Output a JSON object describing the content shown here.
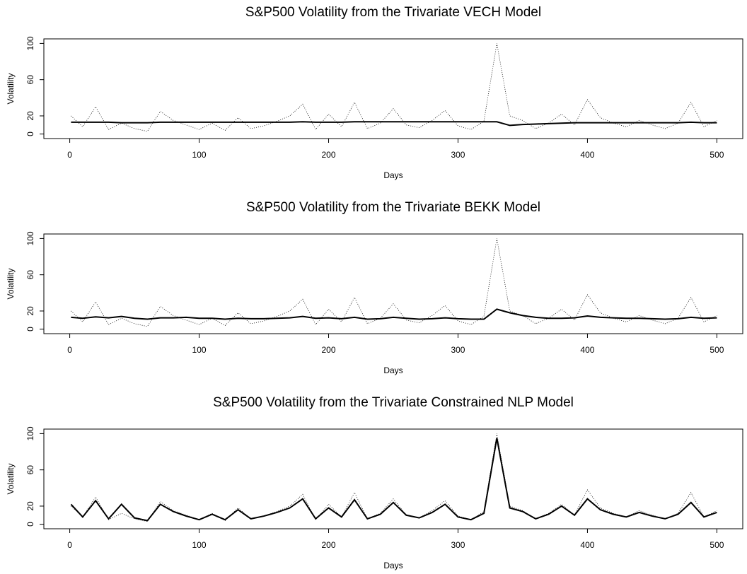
{
  "chart_data": [
    {
      "type": "line",
      "title": "S&P500 Volatility from the Trivariate VECH Model",
      "x_label": "Days",
      "y_label": "Volatility",
      "xlim": [
        -20,
        520
      ],
      "ylim": [
        -5,
        105
      ],
      "xticks": [
        0,
        100,
        200,
        300,
        400,
        500
      ],
      "yticks": [
        0,
        20,
        60,
        100
      ],
      "x": [
        1,
        10,
        20,
        30,
        40,
        50,
        60,
        70,
        80,
        90,
        100,
        110,
        120,
        130,
        140,
        150,
        160,
        170,
        180,
        190,
        200,
        210,
        220,
        230,
        240,
        250,
        260,
        270,
        280,
        290,
        300,
        310,
        320,
        330,
        340,
        350,
        360,
        370,
        380,
        390,
        400,
        410,
        420,
        430,
        440,
        450,
        460,
        470,
        480,
        490,
        500
      ],
      "series": [
        {
          "color": "#000000",
          "style": "dotted",
          "values": [
            20,
            8,
            30,
            5,
            12,
            6,
            3,
            25,
            15,
            10,
            5,
            12,
            4,
            18,
            6,
            9,
            14,
            20,
            33,
            5,
            22,
            8,
            35,
            6,
            12,
            28,
            10,
            7,
            15,
            26,
            9,
            5,
            14,
            100,
            20,
            15,
            6,
            12,
            22,
            10,
            38,
            18,
            12,
            8,
            15,
            10,
            6,
            12,
            35,
            8,
            15
          ]
        },
        {
          "color": "#000000",
          "style": "solid",
          "values": [
            13,
            13,
            13,
            13,
            12.5,
            12.5,
            12.5,
            13,
            13,
            13,
            13,
            13,
            13,
            13,
            13,
            13,
            13,
            13,
            13.5,
            13,
            13,
            13,
            13.5,
            13.5,
            13.5,
            13.5,
            13.5,
            13.5,
            13.5,
            13.5,
            13.5,
            13.5,
            13.5,
            13.5,
            9.5,
            10.5,
            11,
            11.5,
            12,
            12.5,
            12.5,
            12.5,
            12.5,
            12.5,
            12.5,
            12.5,
            12.5,
            12.5,
            13,
            12.5,
            12.5
          ]
        }
      ]
    },
    {
      "type": "line",
      "title": "S&P500 Volatility from the Trivariate BEKK Model",
      "x_label": "Days",
      "y_label": "Volatility",
      "xlim": [
        -20,
        520
      ],
      "ylim": [
        -5,
        105
      ],
      "xticks": [
        0,
        100,
        200,
        300,
        400,
        500
      ],
      "yticks": [
        0,
        20,
        60,
        100
      ],
      "x": [
        1,
        10,
        20,
        30,
        40,
        50,
        60,
        70,
        80,
        90,
        100,
        110,
        120,
        130,
        140,
        150,
        160,
        170,
        180,
        190,
        200,
        210,
        220,
        230,
        240,
        250,
        260,
        270,
        280,
        290,
        300,
        310,
        320,
        330,
        340,
        350,
        360,
        370,
        380,
        390,
        400,
        410,
        420,
        430,
        440,
        450,
        460,
        470,
        480,
        490,
        500
      ],
      "series": [
        {
          "color": "#000000",
          "style": "dotted",
          "values": [
            20,
            8,
            30,
            5,
            12,
            6,
            3,
            25,
            15,
            10,
            5,
            12,
            4,
            18,
            6,
            9,
            14,
            20,
            33,
            5,
            22,
            8,
            35,
            6,
            12,
            28,
            10,
            7,
            15,
            26,
            9,
            5,
            14,
            100,
            20,
            15,
            6,
            12,
            22,
            10,
            38,
            18,
            12,
            8,
            15,
            10,
            6,
            12,
            35,
            8,
            15
          ]
        },
        {
          "color": "#000000",
          "style": "solid",
          "values": [
            13,
            12,
            13.5,
            12.5,
            14,
            12,
            11,
            12.5,
            12.5,
            13,
            12,
            12,
            11,
            12,
            11.5,
            11.5,
            12,
            12.5,
            14,
            12,
            12.5,
            11.5,
            13,
            11,
            11.5,
            13,
            12,
            11,
            11.5,
            12.5,
            11.5,
            11,
            11,
            22,
            18,
            15,
            13,
            12,
            12,
            12.5,
            14.5,
            13,
            12.5,
            12,
            12,
            11.5,
            11,
            11.5,
            13,
            12,
            12.5
          ]
        }
      ]
    },
    {
      "type": "line",
      "title": "S&P500 Volatility from the Trivariate Constrained NLP Model",
      "x_label": "Days",
      "y_label": "Volatility",
      "xlim": [
        -20,
        520
      ],
      "ylim": [
        -5,
        105
      ],
      "xticks": [
        0,
        100,
        200,
        300,
        400,
        500
      ],
      "yticks": [
        0,
        20,
        60,
        100
      ],
      "x": [
        1,
        10,
        20,
        30,
        40,
        50,
        60,
        70,
        80,
        90,
        100,
        110,
        120,
        130,
        140,
        150,
        160,
        170,
        180,
        190,
        200,
        210,
        220,
        230,
        240,
        250,
        260,
        270,
        280,
        290,
        300,
        310,
        320,
        330,
        340,
        350,
        360,
        370,
        380,
        390,
        400,
        410,
        420,
        430,
        440,
        450,
        460,
        470,
        480,
        490,
        500
      ],
      "series": [
        {
          "color": "#000000",
          "style": "dotted",
          "values": [
            20,
            8,
            30,
            5,
            12,
            6,
            3,
            25,
            15,
            10,
            5,
            12,
            4,
            18,
            6,
            9,
            14,
            20,
            33,
            5,
            22,
            8,
            35,
            6,
            12,
            28,
            10,
            7,
            15,
            26,
            9,
            5,
            14,
            100,
            20,
            15,
            6,
            12,
            22,
            10,
            38,
            18,
            12,
            8,
            15,
            10,
            6,
            12,
            35,
            8,
            15
          ]
        },
        {
          "color": "#000000",
          "style": "solid",
          "values": [
            22,
            8,
            26,
            6,
            22,
            7,
            4,
            22,
            14,
            9,
            5,
            11,
            5,
            16,
            6,
            9,
            13,
            18,
            28,
            6,
            18,
            8,
            27,
            6,
            11,
            24,
            10,
            7,
            13,
            22,
            8,
            5,
            12,
            95,
            18,
            14,
            6,
            11,
            20,
            10,
            28,
            16,
            11,
            8,
            13,
            9,
            6,
            11,
            24,
            8,
            13
          ]
        }
      ]
    }
  ]
}
